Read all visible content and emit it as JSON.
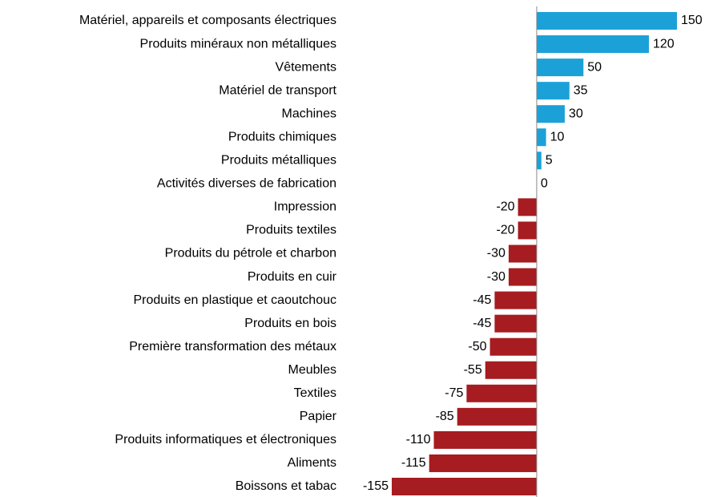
{
  "chart_data": {
    "type": "barh",
    "categories": [
      "Matériel, appareils et composants électriques",
      "Produits minéraux non métalliques",
      "Vêtements",
      "Matériel de transport",
      "Machines",
      "Produits chimiques",
      "Produits métalliques",
      "Activités diverses de fabrication",
      "Impression",
      "Produits textiles",
      "Produits du pétrole et charbon",
      "Produits en cuir",
      "Produits en plastique et caoutchouc",
      "Produits en bois",
      "Première transformation des métaux",
      "Meubles",
      "Textiles",
      "Papier",
      "Produits informatiques et électroniques",
      "Aliments",
      "Boissons et tabac"
    ],
    "values": [
      150,
      120,
      50,
      35,
      30,
      10,
      5,
      0,
      -20,
      -20,
      -30,
      -30,
      -45,
      -45,
      -50,
      -55,
      -75,
      -85,
      -110,
      -115,
      -155
    ],
    "positive_color": "#1ba1d8",
    "negative_color": "#a61c20",
    "xlim": [
      -155,
      150
    ]
  }
}
